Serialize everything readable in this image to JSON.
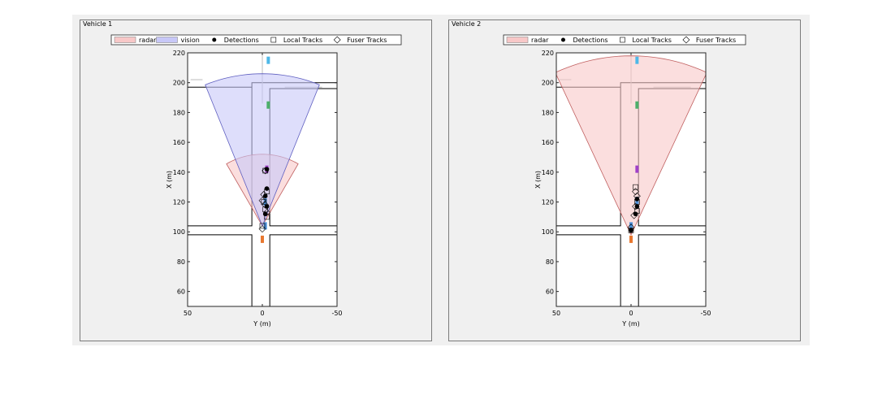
{
  "figure": {
    "panels": [
      {
        "title": "Vehicle 1",
        "legend": [
          {
            "kind": "patch",
            "label": "radar",
            "color": "#f8c8c8"
          },
          {
            "kind": "patch",
            "label": "vision",
            "color": "#c8c8f8"
          },
          {
            "kind": "dot",
            "label": "Detections"
          },
          {
            "kind": "local",
            "label": "Local Tracks"
          },
          {
            "kind": "fuser",
            "label": "Fuser Tracks"
          }
        ]
      },
      {
        "title": "Vehicle 2",
        "legend": [
          {
            "kind": "patch",
            "label": "radar",
            "color": "#f8c8c8"
          },
          {
            "kind": "dot",
            "label": "Detections"
          },
          {
            "kind": "local",
            "label": "Local Tracks"
          },
          {
            "kind": "fuser",
            "label": "Fuser Tracks"
          }
        ]
      }
    ]
  },
  "chart_data": [
    {
      "type": "scatter",
      "title": "Vehicle 1",
      "xlabel": "Y (m)",
      "ylabel": "X (m)",
      "xlim": [
        50,
        -50
      ],
      "ylim": [
        50,
        220
      ],
      "xticks": [
        50,
        0,
        -50
      ],
      "yticks": [
        60,
        80,
        100,
        120,
        140,
        160,
        180,
        200,
        220
      ],
      "coverage": [
        {
          "sensor": "radar",
          "color": "#f8c8c8",
          "stroke": "#c06060",
          "origin": [
            0,
            104
          ],
          "range": 48,
          "half_angle_deg": 30
        },
        {
          "sensor": "vision",
          "color": "#c8c8f8",
          "stroke": "#6060c0",
          "origin": [
            0,
            104
          ],
          "range": 102,
          "half_angle_deg": 22
        }
      ],
      "vehicles": [
        {
          "y": -4,
          "x": 215,
          "color": "#4db8e8"
        },
        {
          "y": -4,
          "x": 185,
          "color": "#4caf6a"
        },
        {
          "y": -3,
          "x": 142,
          "color": "#a040c8"
        },
        {
          "y": -2,
          "x": 120,
          "color": "#4d90d8"
        },
        {
          "y": -2,
          "x": 104,
          "color": "#4d90d8"
        },
        {
          "y": 0,
          "x": 95,
          "color": "#e87830"
        }
      ],
      "detections": [
        [
          -3,
          142
        ],
        [
          -3,
          129
        ],
        [
          -2,
          124
        ],
        [
          -3,
          117
        ],
        [
          -2,
          112
        ]
      ],
      "local_tracks": [
        [
          -2,
          141
        ],
        [
          -3,
          127
        ],
        [
          -1,
          120
        ],
        [
          -2,
          115
        ],
        [
          -3,
          110
        ],
        [
          0,
          104
        ]
      ],
      "fuser_tracks": [
        [
          -2,
          141
        ],
        [
          -1,
          125
        ],
        [
          0,
          121
        ],
        [
          -2,
          118
        ],
        [
          -3,
          113
        ],
        [
          0,
          102
        ]
      ]
    },
    {
      "type": "scatter",
      "title": "Vehicle 2",
      "xlabel": "Y (m)",
      "ylabel": "X (m)",
      "xlim": [
        50,
        -50
      ],
      "ylim": [
        50,
        220
      ],
      "xticks": [
        50,
        0,
        -50
      ],
      "yticks": [
        60,
        80,
        100,
        120,
        140,
        160,
        180,
        200,
        220
      ],
      "coverage": [
        {
          "sensor": "radar",
          "color": "#f8c8c8",
          "stroke": "#c06060",
          "origin": [
            0,
            98
          ],
          "range": 120,
          "half_angle_deg": 25
        }
      ],
      "vehicles": [
        {
          "y": -4,
          "x": 215,
          "color": "#4db8e8"
        },
        {
          "y": -4,
          "x": 185,
          "color": "#4caf6a"
        },
        {
          "y": -4,
          "x": 142,
          "color": "#a040c8"
        },
        {
          "y": -4,
          "x": 121,
          "color": "#4d90d8"
        },
        {
          "y": 0,
          "x": 104,
          "color": "#4d90d8"
        },
        {
          "y": 0,
          "x": 95,
          "color": "#e87830"
        }
      ],
      "detections": [
        [
          -4,
          122
        ],
        [
          -4,
          117
        ],
        [
          -3,
          112
        ],
        [
          0,
          101
        ]
      ],
      "local_tracks": [
        [
          -3,
          130
        ],
        [
          -4,
          120
        ],
        [
          -4,
          114
        ],
        [
          0,
          101
        ]
      ],
      "fuser_tracks": [
        [
          -3,
          127
        ],
        [
          -4,
          124
        ],
        [
          -3,
          117
        ],
        [
          -2,
          111
        ],
        [
          0,
          103
        ]
      ]
    }
  ]
}
